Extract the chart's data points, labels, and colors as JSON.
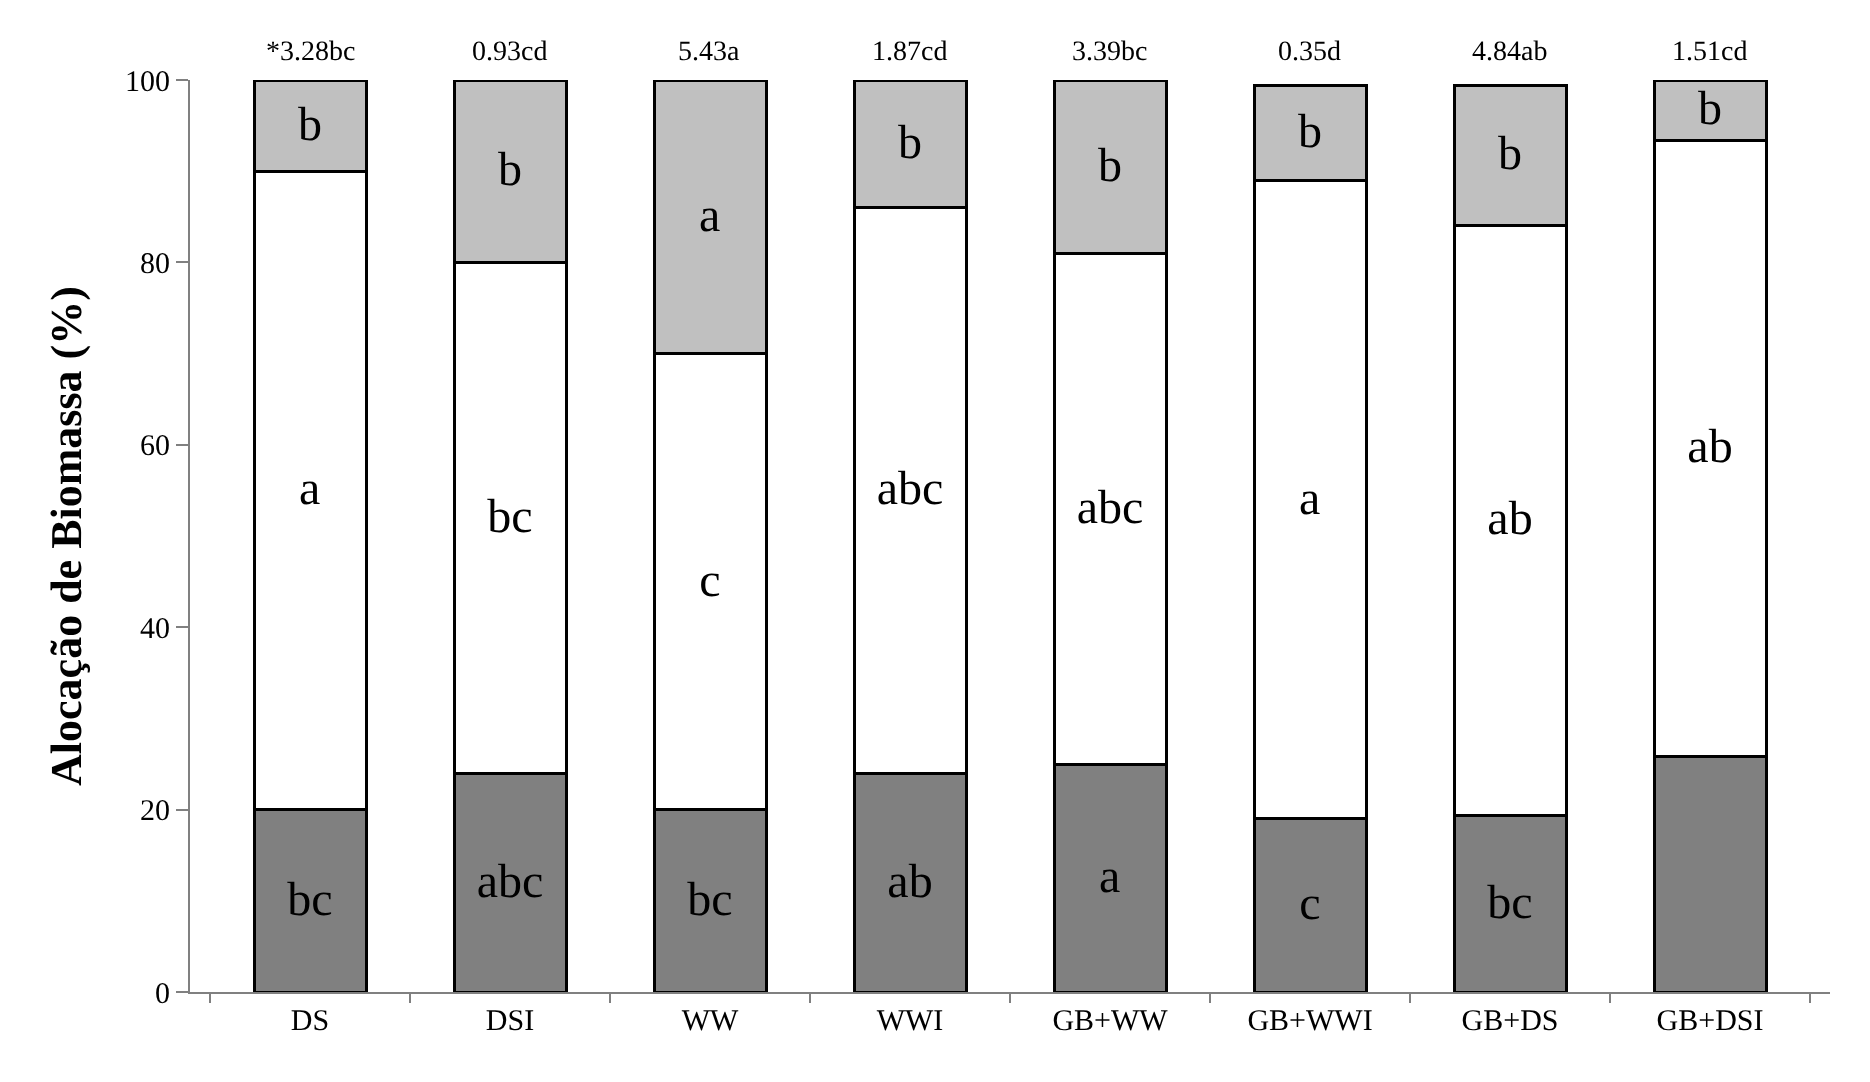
{
  "chart_data": {
    "type": "bar",
    "stacked": true,
    "ylabel": "Alocação de Biomassa (%)",
    "categories": [
      "DS",
      "DSI",
      "WW",
      "WWI",
      "GB+WW",
      "GB+WWI",
      "GB+DS",
      "GB+DSI"
    ],
    "series": [
      {
        "color": "#808080",
        "values": [
          20,
          24,
          20,
          24,
          25,
          19,
          19.4,
          25.8
        ],
        "value_labels": [
          "bc",
          "abc",
          "bc",
          "ab",
          "a",
          "c",
          "bc",
          null
        ]
      },
      {
        "color": "#ffffff",
        "values": [
          70,
          56,
          50,
          62,
          56,
          70,
          64.7,
          67.6
        ],
        "value_labels": [
          "a",
          "bc",
          "c",
          "abc",
          "abc",
          "a",
          "ab",
          "ab"
        ]
      },
      {
        "color": "#c0c0c0",
        "values": [
          10,
          20,
          30,
          14,
          19,
          10.4,
          15.3,
          6.6
        ],
        "value_labels": [
          "b",
          "b",
          "a",
          "b",
          "b",
          "b",
          "b",
          "b"
        ]
      }
    ],
    "annotations": [
      {
        "text": "*3.28bc",
        "x": "DS",
        "y": 100
      },
      {
        "text": "0.93cd",
        "x": "DSI",
        "y": 100
      },
      {
        "text": "5.43a",
        "x": "WW",
        "y": 100
      },
      {
        "text": "1.87cd",
        "x": "WWI",
        "y": 100
      },
      {
        "text": "3.39bc",
        "x": "GB+WW",
        "y": 100
      },
      {
        "text": "0.35d",
        "x": "GB+WWI",
        "y": 100
      },
      {
        "text": "4.84ab",
        "x": "GB+DS",
        "y": 100
      },
      {
        "text": "1.51cd",
        "x": "GB+DSI",
        "y": 100
      }
    ],
    "ylim": [
      0,
      100
    ],
    "yticks": [
      0,
      20,
      40,
      60,
      80,
      100
    ]
  }
}
